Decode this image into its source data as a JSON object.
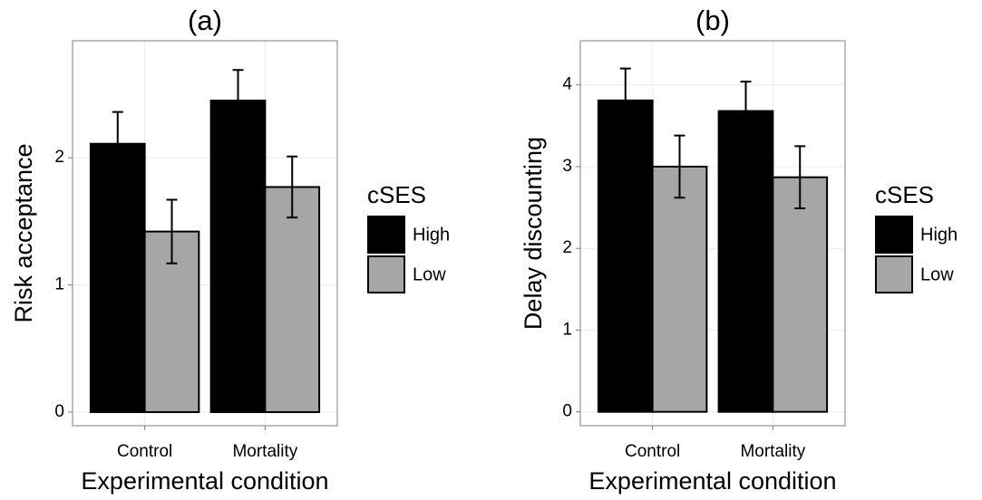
{
  "chart_data": [
    {
      "type": "bar",
      "title": "(a)",
      "x_label": "Experimental condition",
      "y_label": "Risk acceptance",
      "categories": [
        "Control",
        "Mortality"
      ],
      "legend_title": "cSES",
      "series": [
        {
          "name": "High",
          "color": "#000000",
          "values": [
            2.11,
            2.45
          ],
          "errors": [
            0.25,
            0.24
          ]
        },
        {
          "name": "Low",
          "color": "#a6a6a6",
          "values": [
            1.42,
            1.77
          ],
          "errors": [
            0.25,
            0.24
          ]
        }
      ],
      "ylim": [
        -0.107,
        2.92
      ],
      "yticks": [
        0,
        1,
        2
      ],
      "grid": true
    },
    {
      "type": "bar",
      "title": "(b)",
      "x_label": "Experimental condition",
      "y_label": "Delay discounting",
      "categories": [
        "Control",
        "Mortality"
      ],
      "legend_title": "cSES",
      "series": [
        {
          "name": "High",
          "color": "#000000",
          "values": [
            3.81,
            3.68
          ],
          "errors": [
            0.39,
            0.36
          ]
        },
        {
          "name": "Low",
          "color": "#a6a6a6",
          "values": [
            3.0,
            2.87
          ],
          "errors": [
            0.38,
            0.38
          ]
        }
      ],
      "ylim": [
        -0.17,
        4.54
      ],
      "yticks": [
        0,
        1,
        2,
        3,
        4
      ],
      "grid": true
    }
  ]
}
